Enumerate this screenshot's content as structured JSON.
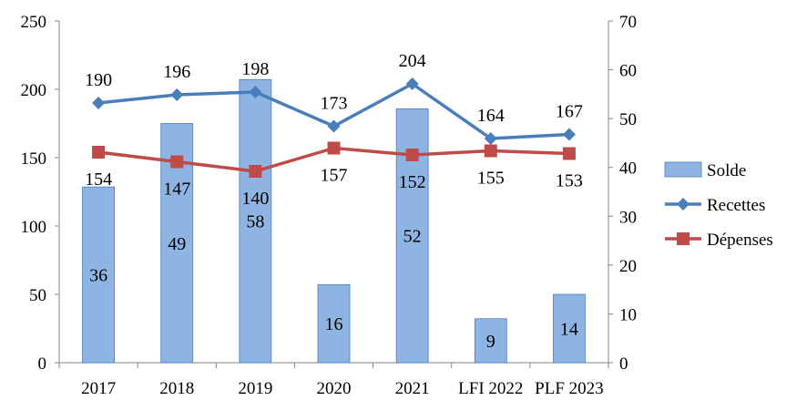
{
  "chart_data": {
    "type": "bar",
    "categories": [
      "2017",
      "2018",
      "2019",
      "2020",
      "2021",
      "LFI 2022",
      "PLF 2023"
    ],
    "series": [
      {
        "name": "Solde",
        "type": "bar",
        "axis": "right",
        "values": [
          36,
          49,
          58,
          16,
          52,
          9,
          14
        ],
        "color": "#8EB4E3"
      },
      {
        "name": "Recettes",
        "type": "line",
        "axis": "left",
        "marker": "diamond",
        "values": [
          190,
          196,
          198,
          173,
          204,
          164,
          167
        ],
        "color": "#4A7EBB"
      },
      {
        "name": "Dépenses",
        "type": "line",
        "axis": "left",
        "marker": "square",
        "values": [
          154,
          147,
          140,
          157,
          152,
          155,
          153
        ],
        "color": "#BE4B48"
      }
    ],
    "y_left": {
      "min": 0,
      "max": 250,
      "step": 50,
      "ticks": [
        "0",
        "50",
        "100",
        "150",
        "200",
        "250"
      ]
    },
    "y_right": {
      "min": 0,
      "max": 70,
      "step": 10,
      "ticks": [
        "0",
        "10",
        "20",
        "30",
        "40",
        "50",
        "60",
        "70"
      ]
    },
    "legend": {
      "position": "right",
      "entries": [
        "Solde",
        "Recettes",
        "Dépenses"
      ]
    },
    "grid": false,
    "title": "",
    "xlabel": "",
    "ylabel": ""
  }
}
